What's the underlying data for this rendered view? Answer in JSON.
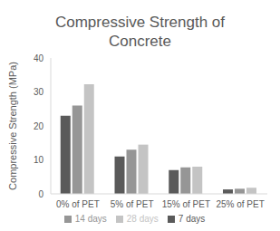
{
  "chart_data": {
    "type": "bar",
    "title": "Compressive Strength of Concrete",
    "y_label": "Compressive Strength (MPa)",
    "categories": [
      "0% of PET",
      "5% of PET",
      "15% of PET",
      "25% of PET"
    ],
    "series": [
      {
        "name": "7 days",
        "color": "#5a5a5a",
        "values": [
          23,
          11,
          7,
          1.3
        ]
      },
      {
        "name": "14 days",
        "color": "#969696",
        "values": [
          26,
          13,
          7.8,
          1.5
        ]
      },
      {
        "name": "28 days",
        "color": "#c4c4c4",
        "values": [
          32.3,
          14.5,
          8,
          1.8
        ]
      }
    ],
    "ylim": [
      0,
      40
    ],
    "yticks": [
      0,
      10,
      20,
      30,
      40
    ],
    "grid": false,
    "legend": "bottom"
  }
}
